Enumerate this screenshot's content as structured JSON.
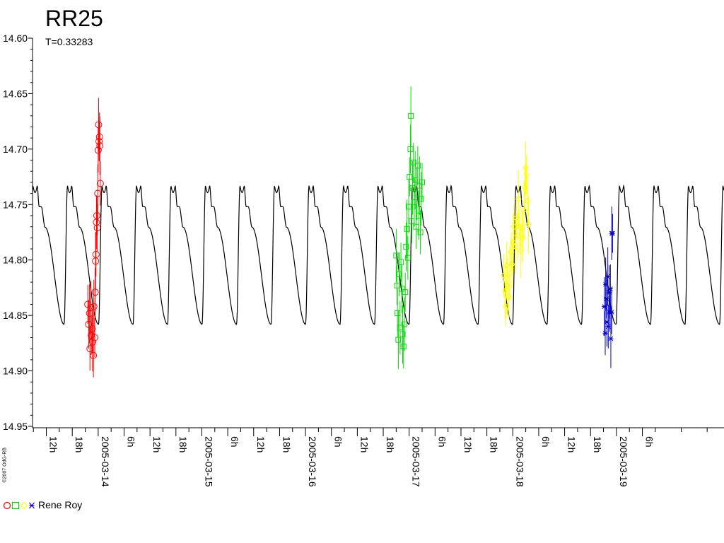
{
  "title": "RR25",
  "subtitle": "T=0.33283",
  "credit": "©2007 OdG-RB",
  "legend": {
    "label": "Rene Roy"
  },
  "colors": {
    "model": "#000000",
    "axis": "#000000",
    "set1": "#ff0000",
    "set2": "#00dd00",
    "set3": "#ffff00",
    "set4": "#0000cc"
  },
  "chart_data": {
    "type": "scatter",
    "x_unit": "hours since 2005-03-14 00:00",
    "ylim": [
      14.6,
      14.95
    ],
    "y_inverted": true,
    "y_ticks": [
      "14.60",
      "14.65",
      "14.70",
      "14.75",
      "14.80",
      "14.85",
      "14.90",
      "14.95"
    ],
    "xlim": [
      -15.2,
      144.9
    ],
    "x_ticks": [
      {
        "t": -12,
        "label": "12h"
      },
      {
        "t": -6,
        "label": "18h"
      },
      {
        "t": 0,
        "label": "2005-03-14"
      },
      {
        "t": 6,
        "label": "6h"
      },
      {
        "t": 12,
        "label": "12h"
      },
      {
        "t": 18,
        "label": "18h"
      },
      {
        "t": 24,
        "label": "2005-03-15"
      },
      {
        "t": 30,
        "label": "6h"
      },
      {
        "t": 36,
        "label": "12h"
      },
      {
        "t": 42,
        "label": "18h"
      },
      {
        "t": 48,
        "label": "2005-03-16"
      },
      {
        "t": 54,
        "label": "6h"
      },
      {
        "t": 60,
        "label": "12h"
      },
      {
        "t": 66,
        "label": "18h"
      },
      {
        "t": 72,
        "label": "2005-03-17"
      },
      {
        "t": 78,
        "label": "6h"
      },
      {
        "t": 84,
        "label": "12h"
      },
      {
        "t": 90,
        "label": "18h"
      },
      {
        "t": 96,
        "label": "2005-03-18"
      },
      {
        "t": 102,
        "label": "6h"
      },
      {
        "t": 108,
        "label": "12h"
      },
      {
        "t": 114,
        "label": "18h"
      },
      {
        "t": 120,
        "label": "2005-03-19"
      },
      {
        "t": 126,
        "label": "6h"
      }
    ],
    "model": {
      "period_days": 0.33283,
      "phase_zero_hours": -7.9,
      "min_mag": 14.733,
      "max_mag": 14.858,
      "shoulder_mag": 14.752
    },
    "series": [
      {
        "marker": "circle",
        "color": "#ff0000",
        "points": [
          {
            "x": -2.4,
            "y": 14.84
          },
          {
            "x": -2.2,
            "y": 14.858
          },
          {
            "x": -2.0,
            "y": 14.848
          },
          {
            "x": -1.9,
            "y": 14.88
          },
          {
            "x": -1.7,
            "y": 14.843
          },
          {
            "x": -1.6,
            "y": 14.868
          },
          {
            "x": -1.4,
            "y": 14.862
          },
          {
            "x": -1.3,
            "y": 14.874
          },
          {
            "x": -1.1,
            "y": 14.886
          },
          {
            "x": -1.0,
            "y": 14.842
          },
          {
            "x": -0.8,
            "y": 14.87
          },
          {
            "x": -0.7,
            "y": 14.829
          },
          {
            "x": -0.6,
            "y": 14.801
          },
          {
            "x": -0.5,
            "y": 14.795
          },
          {
            "x": -0.4,
            "y": 14.766
          },
          {
            "x": -0.3,
            "y": 14.76
          },
          {
            "x": -0.2,
            "y": 14.771
          },
          {
            "x": -0.1,
            "y": 14.74
          },
          {
            "x": 0.0,
            "y": 14.701
          },
          {
            "x": 0.1,
            "y": 14.678
          },
          {
            "x": 0.2,
            "y": 14.693
          },
          {
            "x": 0.3,
            "y": 14.689
          },
          {
            "x": 0.4,
            "y": 14.697
          },
          {
            "x": 0.5,
            "y": 14.731
          }
        ]
      },
      {
        "marker": "square",
        "color": "#00dd00",
        "points": [
          {
            "x": 69.0,
            "y": 14.796
          },
          {
            "x": 69.2,
            "y": 14.823
          },
          {
            "x": 69.3,
            "y": 14.848
          },
          {
            "x": 69.5,
            "y": 14.872
          },
          {
            "x": 69.7,
            "y": 14.813
          },
          {
            "x": 69.9,
            "y": 14.861
          },
          {
            "x": 70.1,
            "y": 14.802
          },
          {
            "x": 70.3,
            "y": 14.826
          },
          {
            "x": 70.5,
            "y": 14.867
          },
          {
            "x": 70.7,
            "y": 14.878
          },
          {
            "x": 70.9,
            "y": 14.858
          },
          {
            "x": 71.1,
            "y": 14.829
          },
          {
            "x": 71.3,
            "y": 14.788
          },
          {
            "x": 71.5,
            "y": 14.772
          },
          {
            "x": 71.7,
            "y": 14.798
          },
          {
            "x": 71.9,
            "y": 14.752
          },
          {
            "x": 72.1,
            "y": 14.725
          },
          {
            "x": 72.3,
            "y": 14.7
          },
          {
            "x": 72.4,
            "y": 14.67
          },
          {
            "x": 72.6,
            "y": 14.765
          },
          {
            "x": 72.8,
            "y": 14.735
          },
          {
            "x": 73.0,
            "y": 14.712
          },
          {
            "x": 73.2,
            "y": 14.748
          },
          {
            "x": 73.4,
            "y": 14.728
          },
          {
            "x": 73.6,
            "y": 14.77
          },
          {
            "x": 73.8,
            "y": 14.74
          },
          {
            "x": 74.0,
            "y": 14.715
          },
          {
            "x": 74.2,
            "y": 14.76
          },
          {
            "x": 74.4,
            "y": 14.733
          },
          {
            "x": 74.6,
            "y": 14.775
          },
          {
            "x": 74.8,
            "y": 14.745
          },
          {
            "x": 75.0,
            "y": 14.73
          }
        ]
      },
      {
        "marker": "diamond",
        "color": "#ffff00",
        "points": [
          {
            "x": 93.9,
            "y": 14.814
          },
          {
            "x": 94.2,
            "y": 14.828
          },
          {
            "x": 94.4,
            "y": 14.842
          },
          {
            "x": 94.6,
            "y": 14.805
          },
          {
            "x": 94.8,
            "y": 14.823
          },
          {
            "x": 95.1,
            "y": 14.833
          },
          {
            "x": 95.3,
            "y": 14.812
          },
          {
            "x": 95.6,
            "y": 14.793
          },
          {
            "x": 95.8,
            "y": 14.804
          },
          {
            "x": 96.1,
            "y": 14.784
          },
          {
            "x": 96.3,
            "y": 14.77
          },
          {
            "x": 96.6,
            "y": 14.788
          },
          {
            "x": 96.8,
            "y": 14.762
          },
          {
            "x": 97.1,
            "y": 14.778
          },
          {
            "x": 97.3,
            "y": 14.745
          },
          {
            "x": 97.6,
            "y": 14.77
          },
          {
            "x": 97.8,
            "y": 14.792
          },
          {
            "x": 98.1,
            "y": 14.772
          },
          {
            "x": 98.3,
            "y": 14.78
          },
          {
            "x": 98.6,
            "y": 14.755
          },
          {
            "x": 98.8,
            "y": 14.735
          },
          {
            "x": 99.0,
            "y": 14.717
          },
          {
            "x": 99.2,
            "y": 14.723
          },
          {
            "x": 99.4,
            "y": 14.747
          },
          {
            "x": 99.6,
            "y": 14.768
          }
        ]
      },
      {
        "marker": "star",
        "color": "#0000cc",
        "points": [
          {
            "x": 117.2,
            "y": 14.842
          },
          {
            "x": 117.4,
            "y": 14.866
          },
          {
            "x": 117.5,
            "y": 14.822
          },
          {
            "x": 117.7,
            "y": 14.835
          },
          {
            "x": 117.8,
            "y": 14.856
          },
          {
            "x": 118.0,
            "y": 14.815
          },
          {
            "x": 118.1,
            "y": 14.86
          },
          {
            "x": 118.3,
            "y": 14.829
          },
          {
            "x": 118.4,
            "y": 14.847
          },
          {
            "x": 118.6,
            "y": 14.826
          },
          {
            "x": 118.7,
            "y": 14.871
          },
          {
            "x": 118.9,
            "y": 14.847
          },
          {
            "x": 118.9,
            "y": 14.776
          },
          {
            "x": 119.1,
            "y": 14.776
          }
        ]
      }
    ]
  }
}
